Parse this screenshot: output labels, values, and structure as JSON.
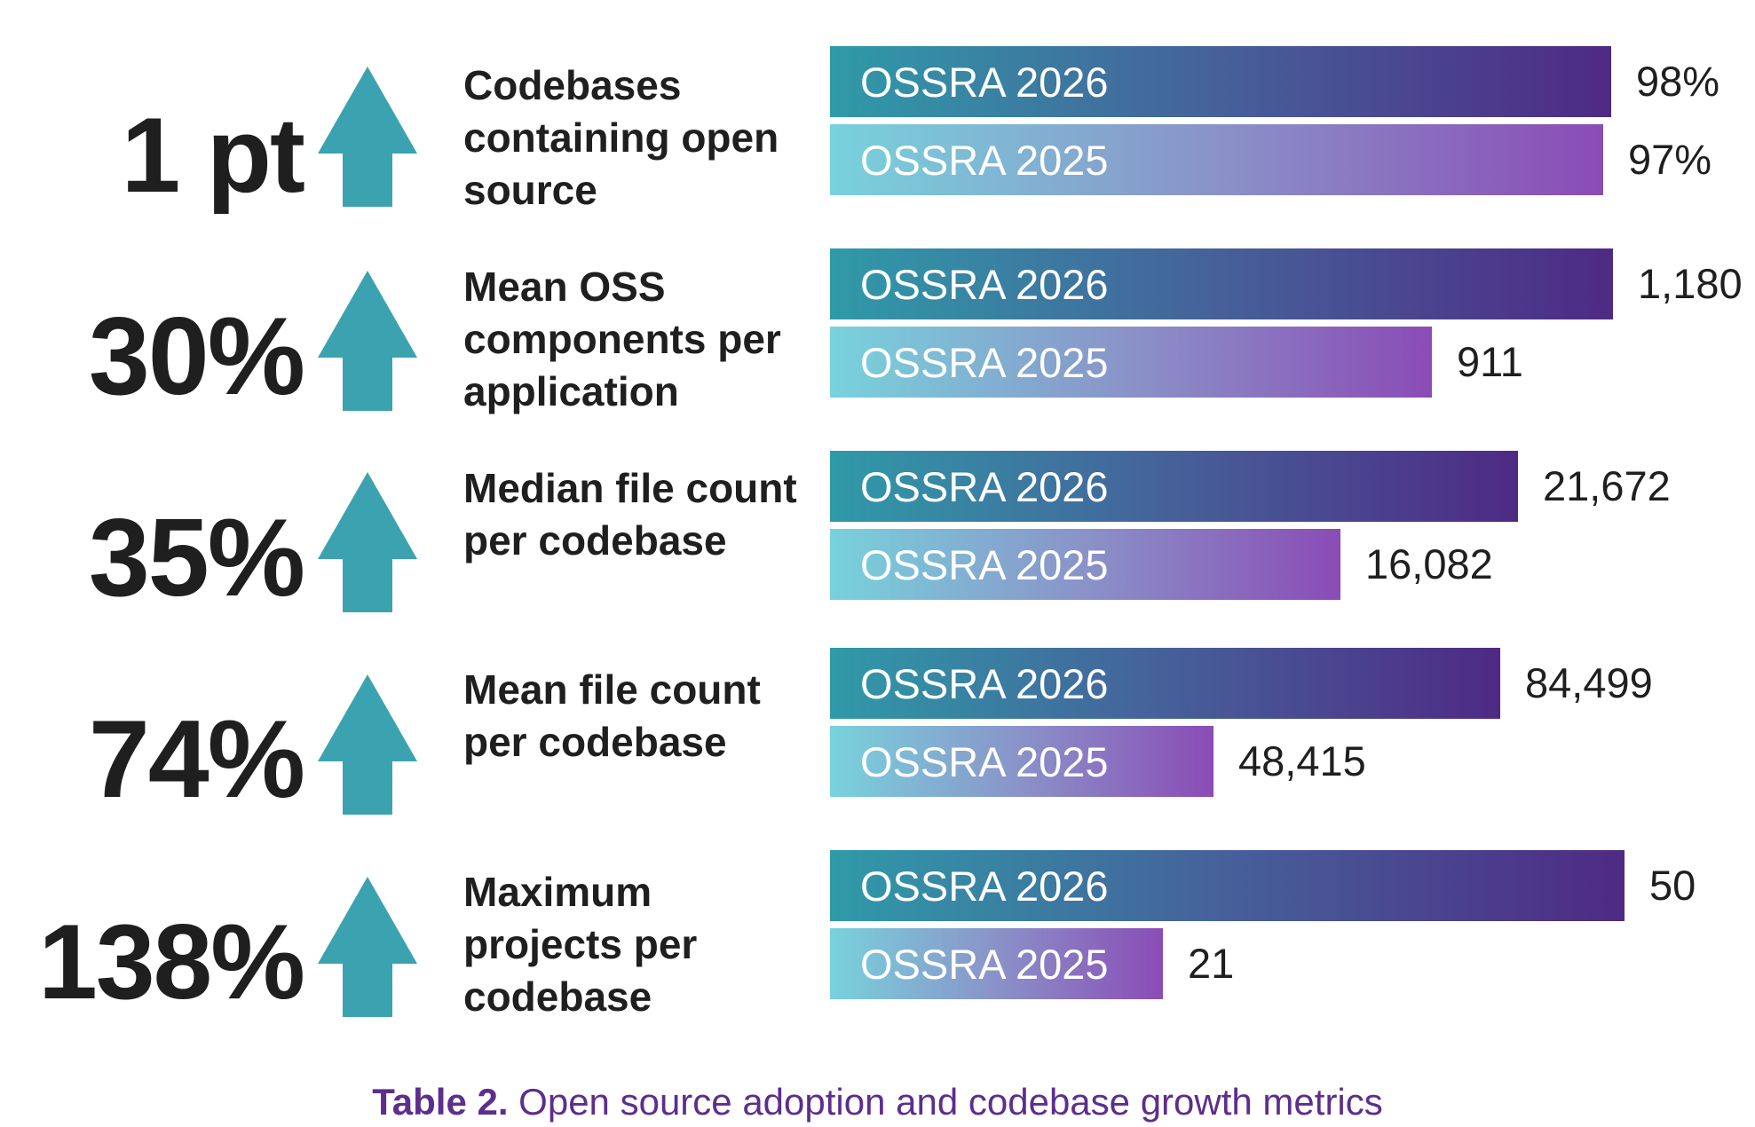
{
  "chart_data": {
    "type": "bar",
    "orientation": "horizontal",
    "series_labels": [
      "OSSRA 2026",
      "OSSRA 2025"
    ],
    "colors": {
      "ossra_2026": [
        "#2f9aa8",
        "#46609a",
        "#4e2a84"
      ],
      "ossra_2025": [
        "#78d2dc",
        "#8a92c8",
        "#8a4cb6"
      ],
      "arrow": "#3ba3af",
      "caption": "#5d2e8c"
    },
    "metrics": [
      {
        "change": "1 pt",
        "label": "Codebases containing open source",
        "bars": [
          {
            "label": "OSSRA 2026",
            "value": 98,
            "value_label": "98%"
          },
          {
            "label": "OSSRA 2025",
            "value": 97,
            "value_label": "97%"
          }
        ]
      },
      {
        "change": "30%",
        "label": "Mean OSS components per application",
        "bars": [
          {
            "label": "OSSRA 2026",
            "value": 1180,
            "value_label": "1,180"
          },
          {
            "label": "OSSRA 2025",
            "value": 911,
            "value_label": "911"
          }
        ]
      },
      {
        "change": "35%",
        "label": "Median file count per codebase",
        "bars": [
          {
            "label": "OSSRA 2026",
            "value": 21672,
            "value_label": "21,672"
          },
          {
            "label": "OSSRA 2025",
            "value": 16082,
            "value_label": "16,082"
          }
        ]
      },
      {
        "change": "74%",
        "label": "Mean file count per codebase",
        "bars": [
          {
            "label": "OSSRA 2026",
            "value": 84499,
            "value_label": "84,499"
          },
          {
            "label": "OSSRA 2025",
            "value": 48415,
            "value_label": "48,415"
          }
        ]
      },
      {
        "change": "138%",
        "label": "Maximum projects per codebase",
        "bars": [
          {
            "label": "OSSRA 2026",
            "value": 50,
            "value_label": "50"
          },
          {
            "label": "OSSRA 2025",
            "value": 21,
            "value_label": "21"
          }
        ]
      }
    ]
  },
  "caption": {
    "prefix": "Table 2.",
    "text": " Open source adoption and codebase growth metrics"
  }
}
